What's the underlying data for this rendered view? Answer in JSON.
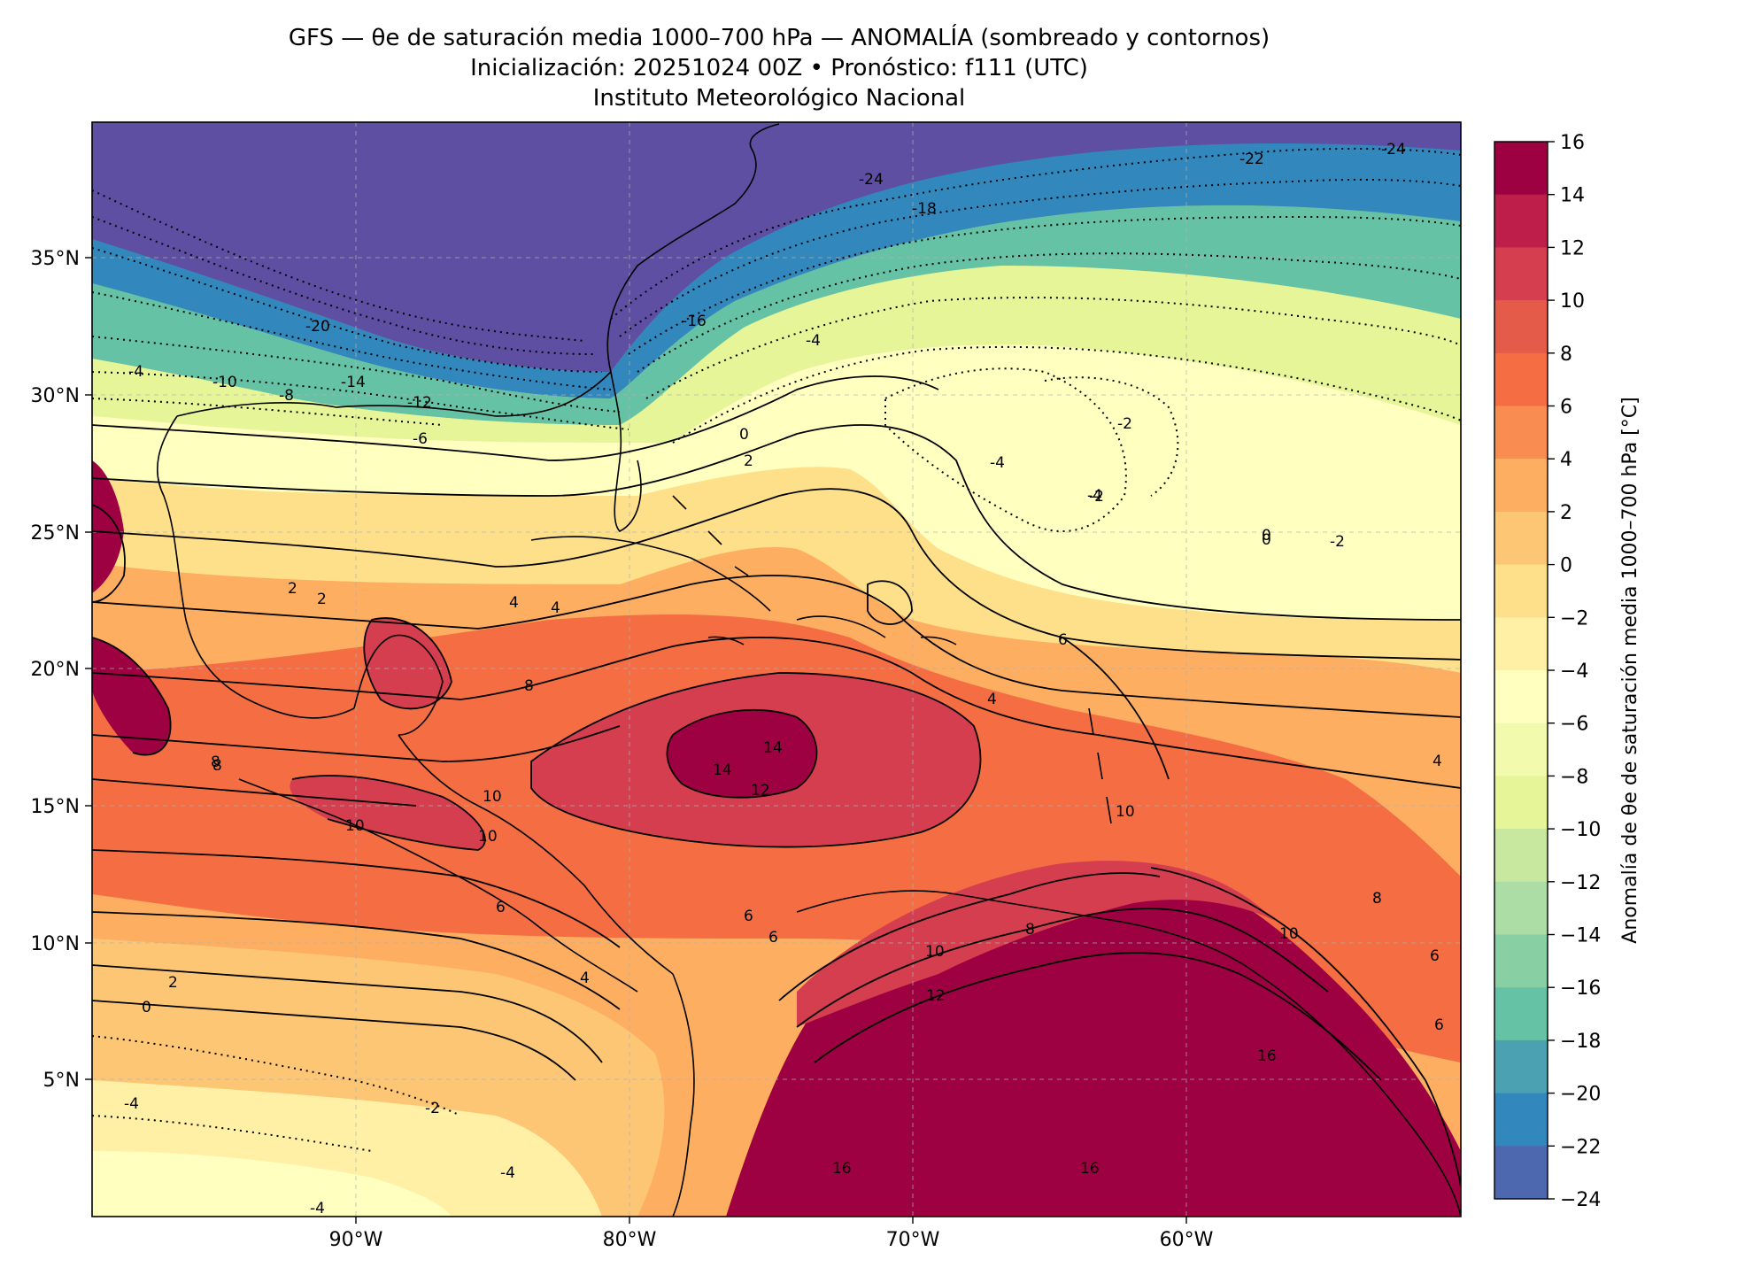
{
  "title": {
    "line1": "GFS — θe de saturación media 1000–700 hPa — ANOMALÍA (sombreado y contornos)",
    "line2": "Inicialización: 20251024 00Z   •   Pronóstico: f111 (UTC)",
    "line3": "Instituto Meteorológico Nacional"
  },
  "map": {
    "projection": "PlateCarree",
    "lon_range": [
      -100,
      -50
    ],
    "lat_range": [
      0,
      40
    ],
    "lat_ticks": [
      "35°N",
      "30°N",
      "25°N",
      "20°N",
      "15°N",
      "10°N",
      "5°N"
    ],
    "lon_ticks": [
      "90°W",
      "80°W",
      "70°W",
      "60°W"
    ],
    "grid": true
  },
  "colorbar": {
    "label": "Anomalía de θe de saturación media 1000–700 hPa [°C]",
    "ticks": [
      "16",
      "14",
      "12",
      "10",
      "8",
      "6",
      "4",
      "2",
      "0",
      "−2",
      "−4",
      "−6",
      "−8",
      "−10",
      "−12",
      "−14",
      "−16",
      "−18",
      "−20",
      "−22",
      "−24"
    ],
    "colors_top_to_bottom": [
      "#9e0142",
      "#be1e4a",
      "#d53e4f",
      "#e45c49",
      "#f46d43",
      "#f88c51",
      "#fdae61",
      "#fdc675",
      "#fee08b",
      "#fff0a6",
      "#ffffbf",
      "#f2faae",
      "#e6f598",
      "#c7e89e",
      "#abdda4",
      "#88cfa4",
      "#66c2a5",
      "#4ba0b1",
      "#3288bd",
      "#4d68ae",
      "#5e4fa2"
    ]
  },
  "contour_labels": [
    "-24",
    "-22",
    "-24",
    "-18",
    "-20",
    "-16",
    "-10",
    "-8",
    "-14",
    "-12",
    "-6",
    "-4",
    "-2",
    "0",
    "2",
    "-4",
    "-4",
    "0",
    "-2",
    "-4",
    "2",
    "2",
    "4",
    "4",
    "8",
    "6",
    "14",
    "14",
    "12",
    "10",
    "10",
    "10",
    "8",
    "6",
    "6",
    "4",
    "2",
    "0",
    "-4",
    "-2",
    "-4",
    "-4",
    "6",
    "8",
    "10",
    "12",
    "10",
    "16",
    "16",
    "16",
    "6",
    "6",
    "4",
    "8",
    "8",
    "10",
    "4",
    "-2",
    "0"
  ]
}
